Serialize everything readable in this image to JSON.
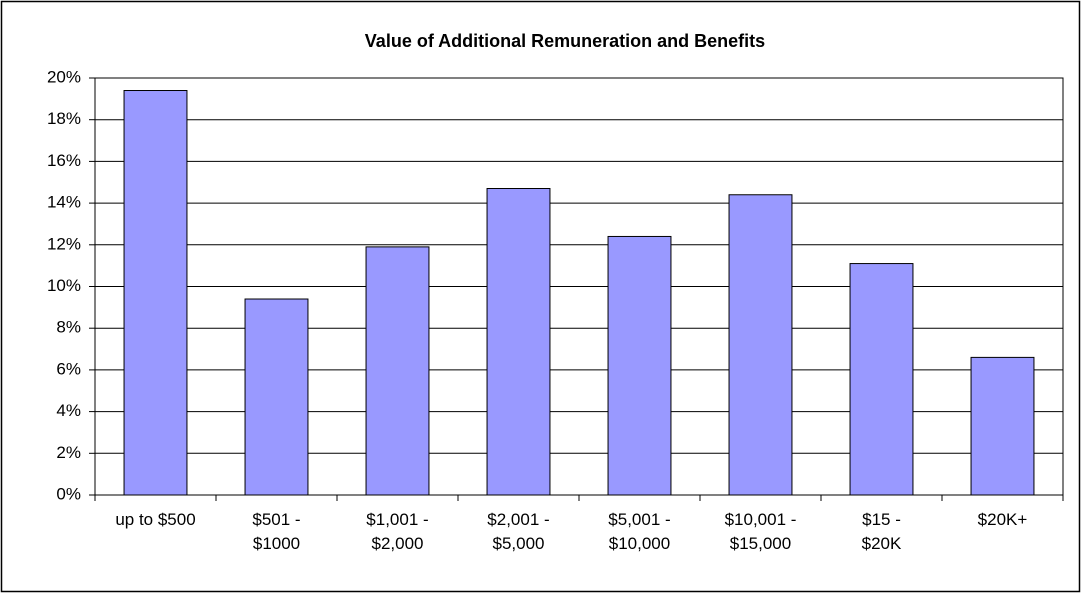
{
  "chart_data": {
    "type": "bar",
    "title": "Value of Additional Remuneration and Benefits",
    "categories": [
      "up to $500",
      "$501 -\n$1000",
      "$1,001 -\n$2,000",
      "$2,001 -\n$5,000",
      "$5,001 -\n$10,000",
      "$10,001 -\n$15,000",
      "$15 -\n$20K",
      "$20K+"
    ],
    "values": [
      19.4,
      9.4,
      11.9,
      14.7,
      12.4,
      14.4,
      11.1,
      6.6
    ],
    "color": "#9999ff",
    "ylim": [
      0,
      20
    ],
    "yticks": [
      {
        "value": 0,
        "label": "0%"
      },
      {
        "value": 2,
        "label": "2%"
      },
      {
        "value": 4,
        "label": "4%"
      },
      {
        "value": 6,
        "label": "6%"
      },
      {
        "value": 8,
        "label": "8%"
      },
      {
        "value": 10,
        "label": "10%"
      },
      {
        "value": 12,
        "label": "12%"
      },
      {
        "value": 14,
        "label": "14%"
      },
      {
        "value": 16,
        "label": "16%"
      },
      {
        "value": 18,
        "label": "18%"
      },
      {
        "value": 20,
        "label": "20%"
      }
    ],
    "grid": true
  }
}
